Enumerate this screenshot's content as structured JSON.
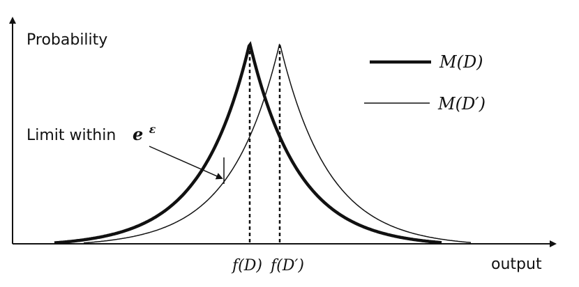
{
  "y_axis_label": "Probability",
  "x_axis_label": "output",
  "annotation": {
    "text": "Limit within",
    "math_base": "e",
    "math_sup": "ε"
  },
  "legend": {
    "entry1": "M(D)",
    "entry2": "M(D′)"
  },
  "x_ticks": {
    "fD": "f(D)",
    "fDprime": "f(D′)"
  },
  "curves": [
    {
      "label": "M(D)",
      "style": "thick",
      "peak_label": "f(D)"
    },
    {
      "label": "M(D′)",
      "style": "thin",
      "peak_label": "f(D′)"
    }
  ],
  "colors": {
    "ink": "#111111",
    "background": "#ffffff"
  }
}
